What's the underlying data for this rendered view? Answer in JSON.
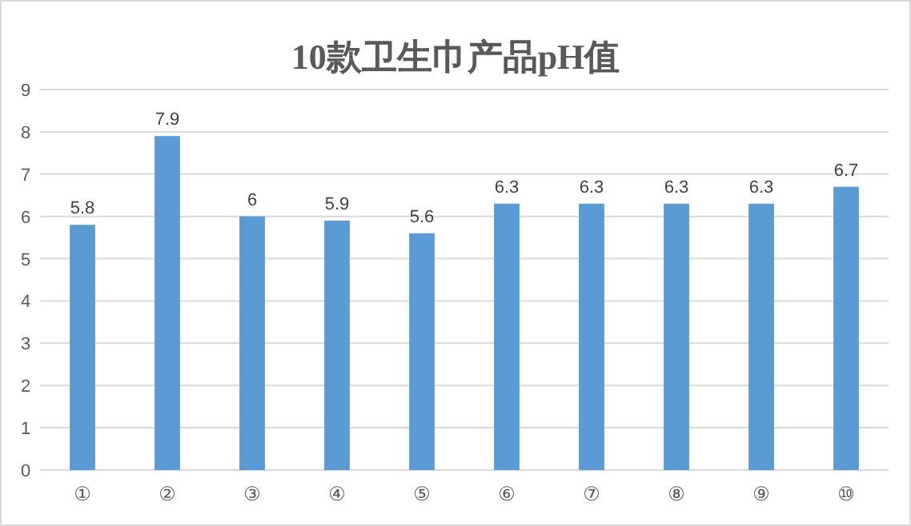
{
  "chart_data": {
    "type": "bar",
    "title": "10款卫生巾产品pH值",
    "categories": [
      "①",
      "②",
      "③",
      "④",
      "⑤",
      "⑥",
      "⑦",
      "⑧",
      "⑨",
      "⑩"
    ],
    "values": [
      5.8,
      7.9,
      6,
      5.9,
      5.6,
      6.3,
      6.3,
      6.3,
      6.3,
      6.7
    ],
    "color": "#5b9bd5",
    "ylim": [
      0,
      9
    ],
    "yticks": [
      0,
      1,
      2,
      3,
      4,
      5,
      6,
      7,
      8,
      9
    ],
    "grid": "y",
    "data_labels": true
  }
}
